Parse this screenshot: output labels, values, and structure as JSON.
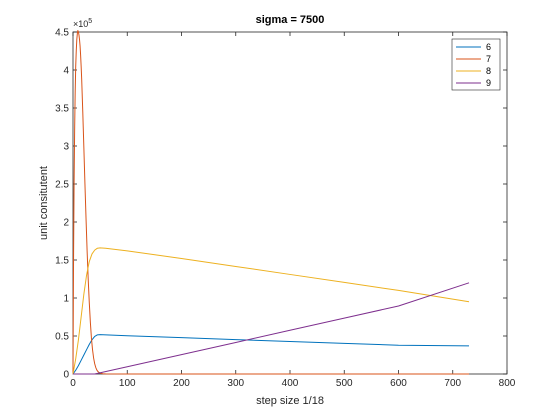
{
  "chart_data": {
    "type": "line",
    "title": "sigma = 7500",
    "xlabel": "step size 1/18",
    "ylabel": "unit consitutent",
    "xlim": [
      0,
      800
    ],
    "ylim": [
      0,
      450000
    ],
    "xticks": [
      0,
      100,
      200,
      300,
      400,
      500,
      600,
      700,
      800
    ],
    "yticks": [
      0,
      50000,
      100000,
      150000,
      200000,
      250000,
      300000,
      350000,
      400000,
      450000
    ],
    "ytick_labels": [
      "0",
      "0.5",
      "1",
      "1.5",
      "2",
      "2.5",
      "3",
      "3.5",
      "4",
      "4.5"
    ],
    "y_exponent_base": "×10",
    "y_exponent_power": "5",
    "grid": false,
    "legend_position": "top-right",
    "series": [
      {
        "name": "6",
        "color": "#0072bd",
        "x": [
          0,
          5,
          10,
          15,
          20,
          25,
          30,
          35,
          40,
          45,
          50,
          100,
          200,
          300,
          400,
          500,
          600,
          730
        ],
        "y": [
          0,
          5000,
          11000,
          18000,
          25000,
          32000,
          39000,
          45000,
          49500,
          51500,
          51800,
          50300,
          47800,
          45300,
          42800,
          40300,
          37900,
          37000
        ]
      },
      {
        "name": "7",
        "color": "#d95319",
        "x": [
          0,
          1,
          2,
          3,
          4,
          5,
          6,
          7,
          8,
          9,
          10,
          11,
          12,
          13,
          14,
          15,
          16,
          18,
          20,
          22,
          24,
          26,
          28,
          30,
          32,
          34,
          36,
          38,
          40,
          42,
          44,
          46,
          48,
          50,
          55,
          60,
          100,
          200,
          300,
          400,
          500,
          600,
          730
        ],
        "y": [
          0,
          150000,
          250000,
          320000,
          370000,
          405000,
          425000,
          440000,
          448000,
          452000,
          450000,
          446000,
          440000,
          432000,
          420000,
          405000,
          388000,
          345000,
          298000,
          250000,
          205000,
          162000,
          125000,
          94000,
          68000,
          47000,
          32000,
          21000,
          13500,
          8500,
          5200,
          3200,
          2000,
          1200,
          400,
          150,
          0,
          0,
          0,
          0,
          0,
          0,
          0
        ]
      },
      {
        "name": "8",
        "color": "#edb120",
        "x": [
          0,
          5,
          10,
          15,
          20,
          25,
          30,
          35,
          40,
          45,
          50,
          60,
          100,
          200,
          300,
          400,
          500,
          600,
          730
        ],
        "y": [
          0,
          20000,
          45000,
          75000,
          105000,
          130000,
          148000,
          158000,
          163000,
          165500,
          166000,
          165500,
          162000,
          152000,
          141500,
          131000,
          120500,
          110000,
          95000
        ]
      },
      {
        "name": "9",
        "color": "#7e2f8e",
        "x": [
          0,
          20,
          40,
          100,
          200,
          300,
          400,
          500,
          600,
          730
        ],
        "y": [
          0,
          0,
          0,
          9500,
          25500,
          41500,
          57500,
          73500,
          89500,
          120000
        ]
      }
    ]
  }
}
